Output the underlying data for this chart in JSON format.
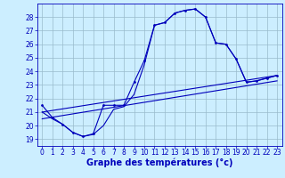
{
  "xlabel": "Graphe des températures (°c)",
  "bg_color": "#cceeff",
  "line_color": "#0000bb",
  "grid_color": "#99bbcc",
  "xlim": [
    -0.5,
    23.5
  ],
  "ylim": [
    18.5,
    29.0
  ],
  "yticks": [
    19,
    20,
    21,
    22,
    23,
    24,
    25,
    26,
    27,
    28
  ],
  "xticks": [
    0,
    1,
    2,
    3,
    4,
    5,
    6,
    7,
    8,
    9,
    10,
    11,
    12,
    13,
    14,
    15,
    16,
    17,
    18,
    19,
    20,
    21,
    22,
    23
  ],
  "curve1_x": [
    0,
    1,
    2,
    3,
    4,
    5,
    6,
    7,
    8,
    9,
    10,
    11,
    12,
    13,
    14,
    15,
    16,
    17,
    18,
    19,
    20,
    21,
    22,
    23
  ],
  "curve1_y": [
    21.5,
    20.6,
    20.1,
    19.5,
    19.2,
    19.4,
    21.5,
    21.5,
    21.5,
    23.2,
    24.8,
    27.4,
    27.6,
    28.3,
    28.5,
    28.6,
    28.0,
    26.1,
    26.0,
    24.9,
    23.2,
    23.3,
    23.5,
    23.7
  ],
  "curve2_x": [
    0,
    1,
    2,
    3,
    4,
    5,
    6,
    7,
    8,
    9,
    10,
    11,
    12,
    13,
    14,
    15,
    16,
    17,
    18,
    19,
    20,
    21,
    22,
    23
  ],
  "curve2_y": [
    21.0,
    20.5,
    20.1,
    19.5,
    19.2,
    19.35,
    20.0,
    21.2,
    21.4,
    22.3,
    24.5,
    27.4,
    27.6,
    28.3,
    28.5,
    28.6,
    28.0,
    26.1,
    26.0,
    24.9,
    23.2,
    23.3,
    23.5,
    23.7
  ],
  "line1_x": [
    0,
    23
  ],
  "line1_y": [
    20.5,
    23.3
  ],
  "line2_x": [
    0,
    23
  ],
  "line2_y": [
    21.0,
    23.7
  ],
  "marker_size": 2.0,
  "line_width": 0.8,
  "xlabel_fontsize": 7,
  "tick_fontsize": 5.5
}
